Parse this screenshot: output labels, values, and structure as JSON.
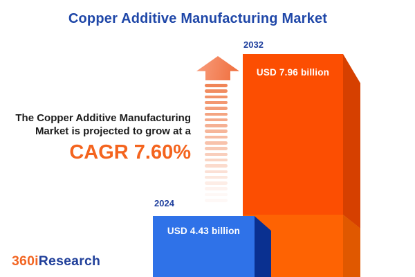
{
  "title": "Copper Additive Manufacturing Market",
  "growth": {
    "line1": "The Copper Additive Manufacturing",
    "line2": "Market is projected to grow at a",
    "cagr": "CAGR 7.60%"
  },
  "chart_data": {
    "type": "bar",
    "title": "Copper Additive Manufacturing Market",
    "categories": [
      "2024",
      "2032"
    ],
    "values": [
      4.43,
      7.96
    ],
    "unit": "USD billion",
    "value_labels": [
      "USD 4.43 billion",
      "USD 7.96 billion"
    ],
    "cagr_percent": 7.6,
    "annotation": "The Copper Additive Manufacturing Market is projected to grow at a CAGR 7.60%",
    "bar_colors": [
      "#2F72E8",
      "#FC4E02"
    ],
    "bar_side_colors": [
      "#0A3090",
      "#D64000"
    ],
    "legend": "none",
    "axes": "none",
    "grid": false
  },
  "logo": {
    "brand_orange": "360i",
    "brand_blue": "Research"
  },
  "colors": {
    "title_blue": "#1F47A8",
    "year_label_blue": "#21419E",
    "cagr_orange": "#F4641E",
    "arrow_orange": "#EF7B49",
    "bar_2024_face": "#2F72E8",
    "bar_2024_side": "#0A3090",
    "bar_2032_face_top": "#FC4E02",
    "bar_2032_face_bottom": "#FE6303",
    "bar_2032_side_top": "#D64000",
    "bar_2032_side_bottom": "#E05800",
    "background": "#FFFFFF"
  }
}
